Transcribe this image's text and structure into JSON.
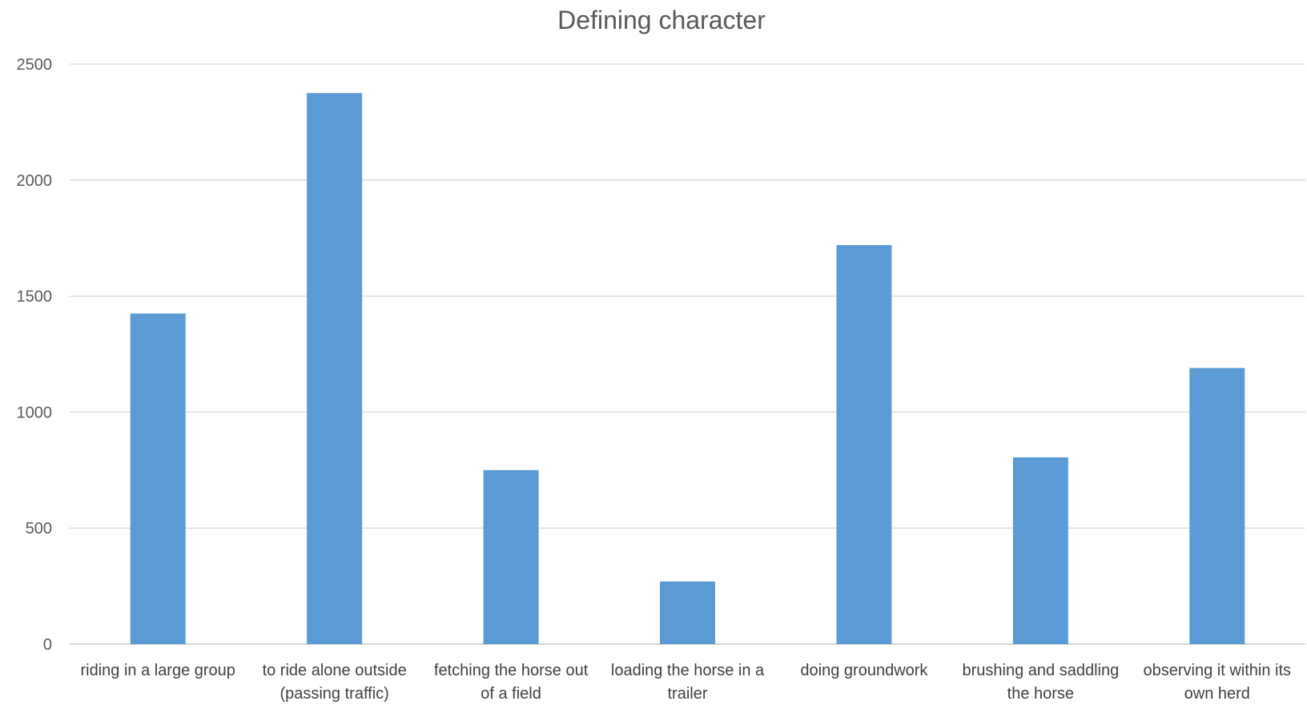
{
  "chart_data": {
    "type": "bar",
    "title": "Defining character",
    "xlabel": "",
    "ylabel": "",
    "categories": [
      [
        "riding in a large group"
      ],
      [
        "to ride alone outside",
        "(passing traffic)"
      ],
      [
        "fetching the horse out",
        "of a field"
      ],
      [
        "loading the horse in a",
        "trailer"
      ],
      [
        "doing groundwork"
      ],
      [
        "brushing and saddling",
        "the horse"
      ],
      [
        "observing it within its",
        "own herd"
      ]
    ],
    "values": [
      1425,
      2375,
      750,
      270,
      1720,
      805,
      1190
    ],
    "ylim": [
      0,
      2500
    ],
    "yticks": [
      0,
      500,
      1000,
      1500,
      2000,
      2500
    ],
    "grid": true,
    "legend": "none",
    "bar_color": "#5b9bd5"
  }
}
